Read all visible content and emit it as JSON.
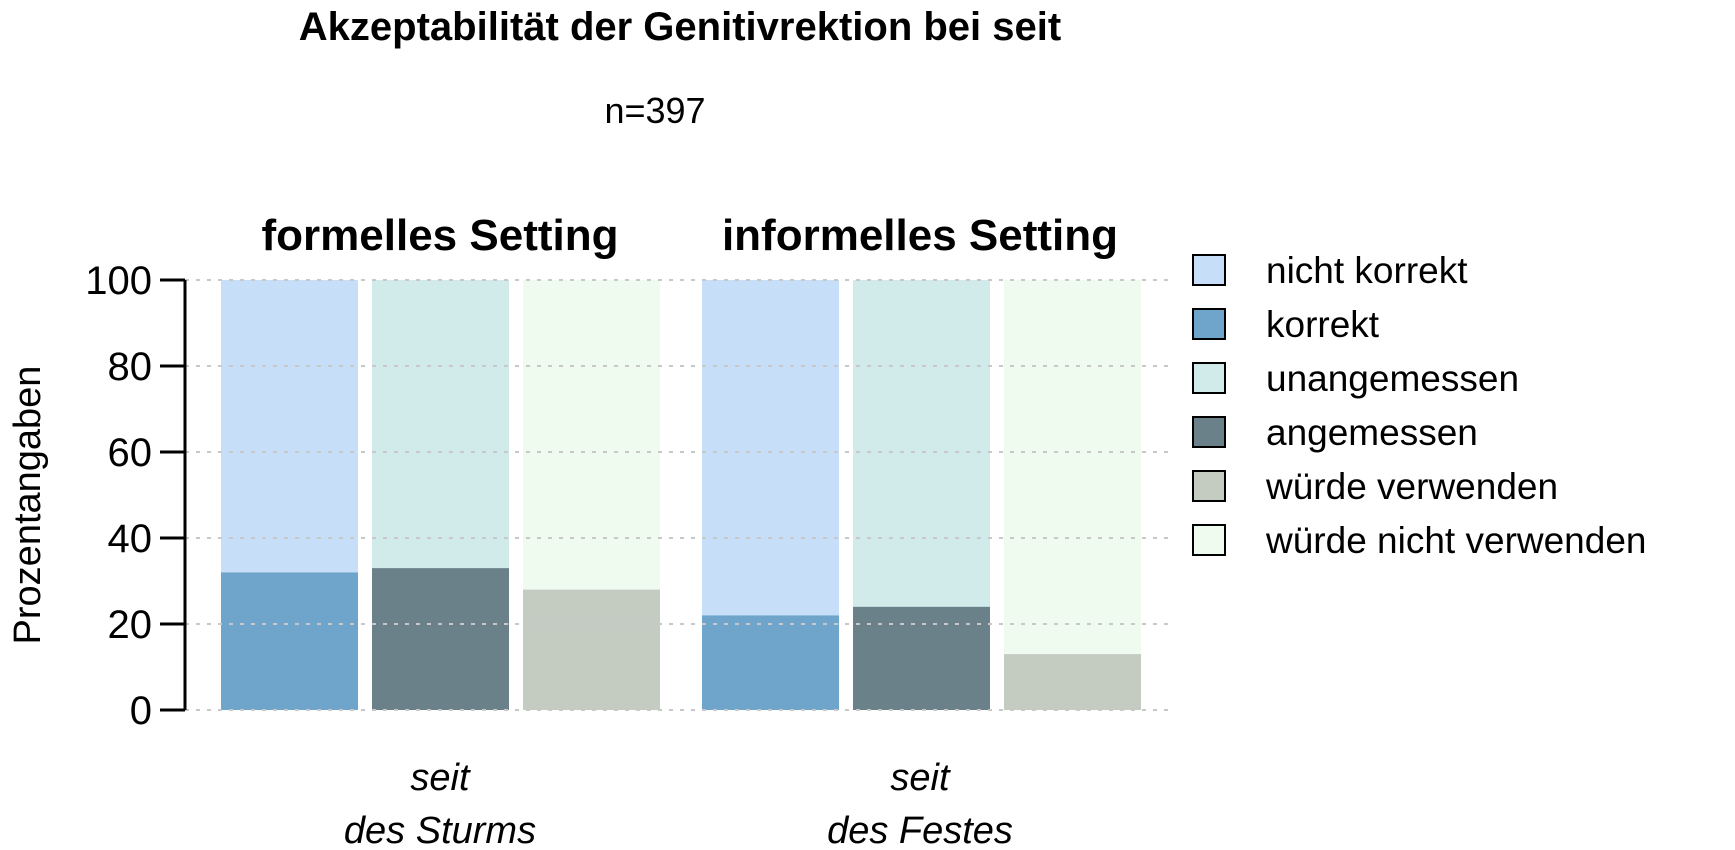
{
  "colors": {
    "nicht_korrekt": "#C6DEF8",
    "korrekt": "#6FA5CB",
    "unangemessen": "#D1EAEA",
    "angemessen": "#6B818A",
    "wuerde_verwenden": "#C4CBC1",
    "wuerde_nicht_verwenden": "#EFFBEF",
    "grid": "#C8C8C8"
  },
  "chart_data": {
    "type": "bar",
    "stacked": true,
    "title": "Akzeptabilität der Genitivrektion bei seit",
    "subtitle": "n=397",
    "ylabel": "Prozentangaben",
    "ylim": [
      0,
      100
    ],
    "yticks": [
      "0",
      "20",
      "40",
      "60",
      "80",
      "100"
    ],
    "grid": true,
    "legend": {
      "position": "right",
      "items": [
        {
          "label": "nicht korrekt",
          "color_key": "nicht_korrekt"
        },
        {
          "label": "korrekt",
          "color_key": "korrekt"
        },
        {
          "label": "unangemessen",
          "color_key": "unangemessen"
        },
        {
          "label": "angemessen",
          "color_key": "angemessen"
        },
        {
          "label": "würde verwenden",
          "color_key": "wuerde_verwenden"
        },
        {
          "label": "würde nicht verwenden",
          "color_key": "wuerde_nicht_verwenden"
        }
      ]
    },
    "panels": [
      {
        "title": "formelles Setting",
        "category_label": [
          "seit",
          "des Sturms"
        ],
        "bars": [
          {
            "bottom_key": "korrekt",
            "bottom": 32,
            "top_key": "nicht_korrekt",
            "top": 68
          },
          {
            "bottom_key": "angemessen",
            "bottom": 33,
            "top_key": "unangemessen",
            "top": 67
          },
          {
            "bottom_key": "wuerde_verwenden",
            "bottom": 28,
            "top_key": "wuerde_nicht_verwenden",
            "top": 72
          }
        ]
      },
      {
        "title": "informelles Setting",
        "category_label": [
          "seit",
          "des Festes"
        ],
        "bars": [
          {
            "bottom_key": "korrekt",
            "bottom": 22,
            "top_key": "nicht_korrekt",
            "top": 78
          },
          {
            "bottom_key": "angemessen",
            "bottom": 24,
            "top_key": "unangemessen",
            "top": 76
          },
          {
            "bottom_key": "wuerde_verwenden",
            "bottom": 13,
            "top_key": "wuerde_nicht_verwenden",
            "top": 87
          }
        ]
      }
    ]
  }
}
